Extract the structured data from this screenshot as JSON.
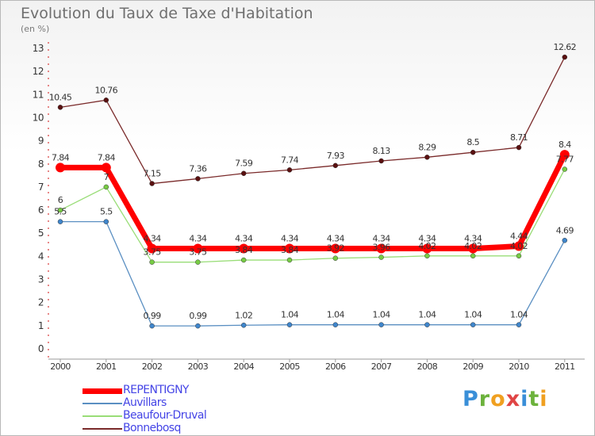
{
  "title": "Evolution du Taux de Taxe d'Habitation",
  "subtitle": "(en %)",
  "brand": {
    "letters": [
      {
        "ch": "P",
        "color": "#3a8fd8"
      },
      {
        "ch": "r",
        "color": "#6cb23c"
      },
      {
        "ch": "o",
        "color": "#f0a020"
      },
      {
        "ch": "x",
        "color": "#e04545"
      },
      {
        "ch": "i",
        "color": "#3a8fd8"
      },
      {
        "ch": "t",
        "color": "#6cb23c"
      },
      {
        "ch": "i",
        "color": "#f0a020"
      }
    ]
  },
  "chart_data": {
    "type": "line",
    "x": [
      "2000",
      "2001",
      "2002",
      "2003",
      "2004",
      "2005",
      "2006",
      "2007",
      "2008",
      "2009",
      "2010",
      "2011"
    ],
    "ylim": [
      0,
      13
    ],
    "yticks": [
      "0",
      "1",
      "2",
      "3",
      "4",
      "5",
      "6",
      "7",
      "8",
      "9",
      "10",
      "11",
      "12",
      "13"
    ],
    "grid": false,
    "legend_position": "bottom-left",
    "series": [
      {
        "name": "Bonnebosq",
        "color": "#7a2a2a",
        "marker": "#5a1010",
        "values": [
          10.45,
          10.76,
          7.15,
          7.36,
          7.59,
          7.74,
          7.93,
          8.13,
          8.29,
          8.5,
          8.71,
          12.62
        ],
        "labels": [
          "10.45",
          "10.76",
          "7.15",
          "7.36",
          "7.59",
          "7.74",
          "7.93",
          "8.13",
          "8.29",
          "8.5",
          "8.71",
          "12.62"
        ]
      },
      {
        "name": "Beaufour-Druval",
        "color": "#99dd77",
        "marker": "#77cc44",
        "values": [
          6,
          7,
          3.75,
          3.75,
          3.84,
          3.84,
          3.92,
          3.96,
          4.02,
          4.02,
          4.02,
          7.77
        ],
        "labels": [
          "6",
          "7",
          "3.75",
          "3.75",
          "3.84",
          "3.84",
          "3.92",
          "3.96",
          "4.02",
          "4.02",
          "4.02",
          "7.77"
        ]
      },
      {
        "name": "Auvillars",
        "color": "#5a8fc2",
        "marker": "#3f86cc",
        "values": [
          5.5,
          5.5,
          0.99,
          0.99,
          1.02,
          1.04,
          1.04,
          1.04,
          1.04,
          1.04,
          1.04,
          4.69
        ],
        "labels": [
          "5.5",
          "5.5",
          "0.99",
          "0.99",
          "1.02",
          "1.04",
          "1.04",
          "1.04",
          "1.04",
          "1.04",
          "1.04",
          "4.69"
        ]
      },
      {
        "name": "REPENTIGNY",
        "color": "#ff0000",
        "marker": "#ff0000",
        "values": [
          7.84,
          7.84,
          4.34,
          4.34,
          4.34,
          4.34,
          4.34,
          4.34,
          4.34,
          4.34,
          4.44,
          8.4
        ],
        "labels": [
          "7.84",
          "7.84",
          "4.34",
          "4.34",
          "4.34",
          "4.34",
          "4.34",
          "4.34",
          "4.34",
          "4.34",
          "4.44",
          "8.4"
        ]
      }
    ]
  }
}
